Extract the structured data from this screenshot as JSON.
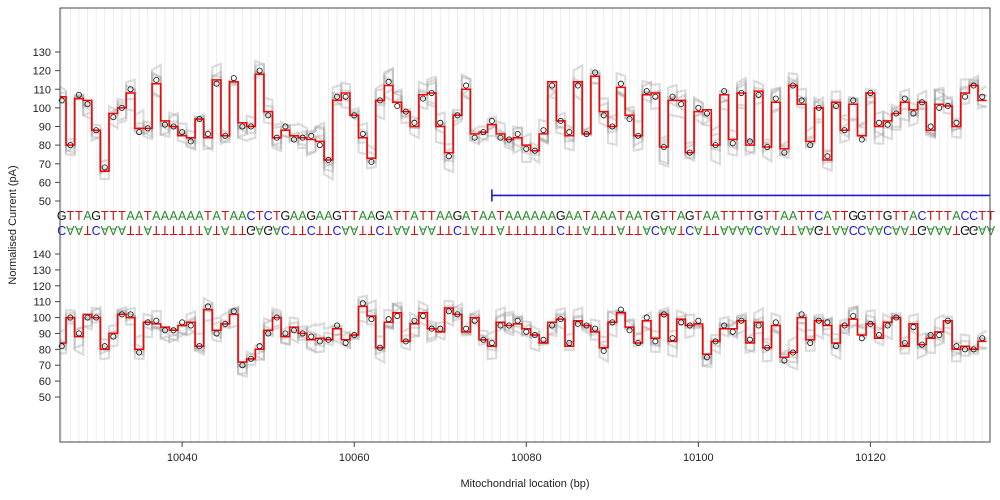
{
  "chart_data": {
    "type": "line",
    "xlabel": "Mitochondrial location (bp)",
    "ylabel": "Normalised Current (pA)",
    "xlim": [
      10025.8,
      10133.9
    ],
    "x_ticks": [
      10040,
      10060,
      10080,
      10100,
      10120
    ],
    "y_ticks_top": [
      50,
      60,
      70,
      80,
      90,
      100,
      110,
      120,
      130
    ],
    "y_ticks_bottom": [
      50,
      60,
      70,
      80,
      90,
      100,
      110,
      120,
      130,
      140
    ],
    "grid": "vertical lines at every base position",
    "sequence_start": 10026,
    "sequence_forward": "GTTAGTTTAATAAAAAATATAACTCTGAAGAAGTTAAGATTATTAAGATAATAAAAAAGAATAAATAATGTTAGTAATTTTGTTAATTCATTGGTTGTTACTTTACCTTC",
    "sequence_reverse": "CAATCAAATTATTTTTTATATTGAGACTTCTTCAATTCTAATAATTCTATTATTTTTTCTTATTTATTACAATCATTAAAACAATTAAGTAACCAACAATGAAATGGAAG",
    "base_colors": {
      "A": "#2a8a2a",
      "C": "#1a1ad6",
      "G": "#111111",
      "T": "#cc1111"
    },
    "annotation": {
      "type": "bracket-line",
      "color": "#1a1ad6",
      "x_start": 10076,
      "x_end": 10133.9,
      "y": 53
    },
    "series": [
      {
        "panel": "top",
        "color": "#ff0000",
        "x": [
          10026,
          10027,
          10028,
          10029,
          10030,
          10031,
          10032,
          10033,
          10034,
          10035,
          10036,
          10037,
          10038,
          10039,
          10040,
          10041,
          10042,
          10043,
          10044,
          10045,
          10046,
          10047,
          10048,
          10049,
          10050,
          10051,
          10052,
          10053,
          10054,
          10055,
          10056,
          10057,
          10058,
          10059,
          10060,
          10061,
          10062,
          10063,
          10064,
          10065,
          10066,
          10067,
          10068,
          10069,
          10070,
          10071,
          10072,
          10073,
          10074,
          10075,
          10076,
          10077,
          10078,
          10079,
          10080,
          10081,
          10082,
          10083,
          10084,
          10085,
          10086,
          10087,
          10088,
          10089,
          10090,
          10091,
          10092,
          10093,
          10094,
          10095,
          10096,
          10097,
          10098,
          10099,
          10100,
          10101,
          10102,
          10103,
          10104,
          10105,
          10106,
          10107,
          10108,
          10109,
          10110,
          10111,
          10112,
          10113,
          10114,
          10115,
          10116,
          10117,
          10118,
          10119,
          10120,
          10121,
          10122,
          10123,
          10124,
          10125,
          10126,
          10127,
          10128,
          10129,
          10130,
          10131,
          10132,
          10133
        ],
        "y": [
          106,
          80,
          105,
          104,
          88,
          66,
          97,
          100,
          108,
          89,
          89,
          113,
          93,
          90,
          85,
          84,
          94,
          84,
          115,
          85,
          114,
          92,
          90,
          118,
          98,
          84,
          88,
          85,
          84,
          83,
          82,
          72,
          104,
          108,
          96,
          84,
          73,
          104,
          112,
          103,
          98,
          90,
          107,
          108,
          90,
          76,
          96,
          110,
          86,
          87,
          91,
          86,
          83,
          84,
          80,
          77,
          86,
          114,
          93,
          85,
          114,
          86,
          117,
          98,
          90,
          111,
          96,
          85,
          107,
          108,
          79,
          104,
          104,
          76,
          98,
          99,
          80,
          107,
          83,
          108,
          80,
          109,
          79,
          103,
          78,
          112,
          102,
          82,
          100,
          72,
          103,
          88,
          102,
          85,
          108,
          90,
          93,
          97,
          103,
          99,
          103,
          88,
          102,
          101,
          90,
          108,
          112,
          104
        ]
      },
      {
        "panel": "bottom",
        "color": "#ff0000",
        "x": [
          10026,
          10027,
          10028,
          10029,
          10030,
          10031,
          10032,
          10033,
          10034,
          10035,
          10036,
          10037,
          10038,
          10039,
          10040,
          10041,
          10042,
          10043,
          10044,
          10045,
          10046,
          10047,
          10048,
          10049,
          10050,
          10051,
          10052,
          10053,
          10054,
          10055,
          10056,
          10057,
          10058,
          10059,
          10060,
          10061,
          10062,
          10063,
          10064,
          10065,
          10066,
          10067,
          10068,
          10069,
          10070,
          10071,
          10072,
          10073,
          10074,
          10075,
          10076,
          10077,
          10078,
          10079,
          10080,
          10081,
          10082,
          10083,
          10084,
          10085,
          10086,
          10087,
          10088,
          10089,
          10090,
          10091,
          10092,
          10093,
          10094,
          10095,
          10096,
          10097,
          10098,
          10099,
          10100,
          10101,
          10102,
          10103,
          10104,
          10105,
          10106,
          10107,
          10108,
          10109,
          10110,
          10111,
          10112,
          10113,
          10114,
          10115,
          10116,
          10117,
          10118,
          10119,
          10120,
          10121,
          10122,
          10123,
          10124,
          10125,
          10126,
          10127,
          10128,
          10129,
          10130,
          10131,
          10132,
          10133
        ],
        "y": [
          84,
          100,
          88,
          102,
          100,
          80,
          90,
          102,
          100,
          80,
          97,
          96,
          94,
          92,
          95,
          97,
          82,
          105,
          92,
          96,
          102,
          72,
          74,
          80,
          92,
          100,
          88,
          94,
          90,
          86,
          87,
          86,
          93,
          86,
          89,
          107,
          101,
          81,
          97,
          103,
          85,
          96,
          103,
          93,
          91,
          106,
          102,
          91,
          100,
          86,
          82,
          97,
          95,
          96,
          93,
          89,
          84,
          97,
          99,
          82,
          98,
          95,
          91,
          81,
          97,
          103,
          94,
          84,
          98,
          87,
          102,
          85,
          99,
          95,
          96,
          77,
          85,
          93,
          93,
          98,
          84,
          97,
          81,
          95,
          75,
          78,
          100,
          86,
          98,
          95,
          84,
          95,
          99,
          89,
          96,
          87,
          97,
          100,
          82,
          96,
          83,
          87,
          91,
          98,
          80,
          82,
          80,
          85
        ]
      }
    ]
  }
}
